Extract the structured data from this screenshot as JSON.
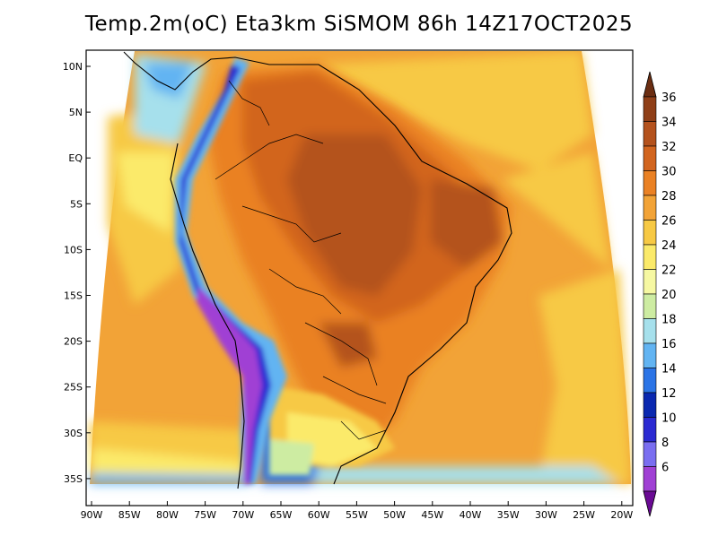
{
  "title": "Temp.2m(oC) Eta3km SiSMOM 86h 14Z17OCT2025",
  "axes": {
    "lat_labels": [
      "10N",
      "5N",
      "EQ",
      "5S",
      "10S",
      "15S",
      "20S",
      "25S",
      "30S",
      "35S"
    ],
    "lon_labels": [
      "90W",
      "85W",
      "80W",
      "75W",
      "70W",
      "65W",
      "60W",
      "55W",
      "50W",
      "45W",
      "40W",
      "35W",
      "30W",
      "25W",
      "20W"
    ]
  },
  "colorbar": {
    "labels": [
      "36",
      "34",
      "32",
      "30",
      "28",
      "26",
      "24",
      "22",
      "20",
      "18",
      "16",
      "14",
      "12",
      "10",
      "8",
      "6"
    ],
    "colors": [
      "#6b2e12",
      "#8f3f18",
      "#b4521d",
      "#d2651f",
      "#ea8124",
      "#f2a337",
      "#f7c944",
      "#fbea6a",
      "#f6f8a2",
      "#cdeca2",
      "#a6e0ec",
      "#62b4f2",
      "#2b74e6",
      "#0a28b0",
      "#2b2ad2",
      "#7a6ef0",
      "#a040d4",
      "#6a0a94"
    ]
  }
}
